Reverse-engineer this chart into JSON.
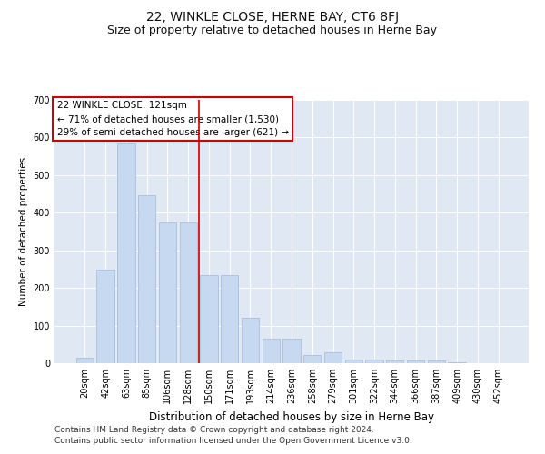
{
  "title": "22, WINKLE CLOSE, HERNE BAY, CT6 8FJ",
  "subtitle": "Size of property relative to detached houses in Herne Bay",
  "xlabel": "Distribution of detached houses by size in Herne Bay",
  "ylabel": "Number of detached properties",
  "categories": [
    "20sqm",
    "42sqm",
    "63sqm",
    "85sqm",
    "106sqm",
    "128sqm",
    "150sqm",
    "171sqm",
    "193sqm",
    "214sqm",
    "236sqm",
    "258sqm",
    "279sqm",
    "301sqm",
    "322sqm",
    "344sqm",
    "366sqm",
    "387sqm",
    "409sqm",
    "430sqm",
    "452sqm"
  ],
  "values": [
    15,
    248,
    585,
    447,
    375,
    375,
    235,
    235,
    120,
    65,
    65,
    22,
    28,
    10,
    10,
    7,
    7,
    8,
    2,
    1,
    1
  ],
  "bar_color": "#c7d9f0",
  "bar_edge_color": "#a0b8d8",
  "vline_x": 5.5,
  "vline_color": "#cc0000",
  "annotation_text": "22 WINKLE CLOSE: 121sqm\n← 71% of detached houses are smaller (1,530)\n29% of semi-detached houses are larger (621) →",
  "annotation_box_color": "#ffffff",
  "annotation_box_edge": "#cc0000",
  "ylim": [
    0,
    700
  ],
  "yticks": [
    0,
    100,
    200,
    300,
    400,
    500,
    600,
    700
  ],
  "background_color": "#e0e8f4",
  "footer1": "Contains HM Land Registry data © Crown copyright and database right 2024.",
  "footer2": "Contains public sector information licensed under the Open Government Licence v3.0.",
  "title_fontsize": 10,
  "subtitle_fontsize": 9,
  "xlabel_fontsize": 8.5,
  "ylabel_fontsize": 7.5,
  "tick_fontsize": 7,
  "annot_fontsize": 7.5,
  "footer_fontsize": 6.5
}
